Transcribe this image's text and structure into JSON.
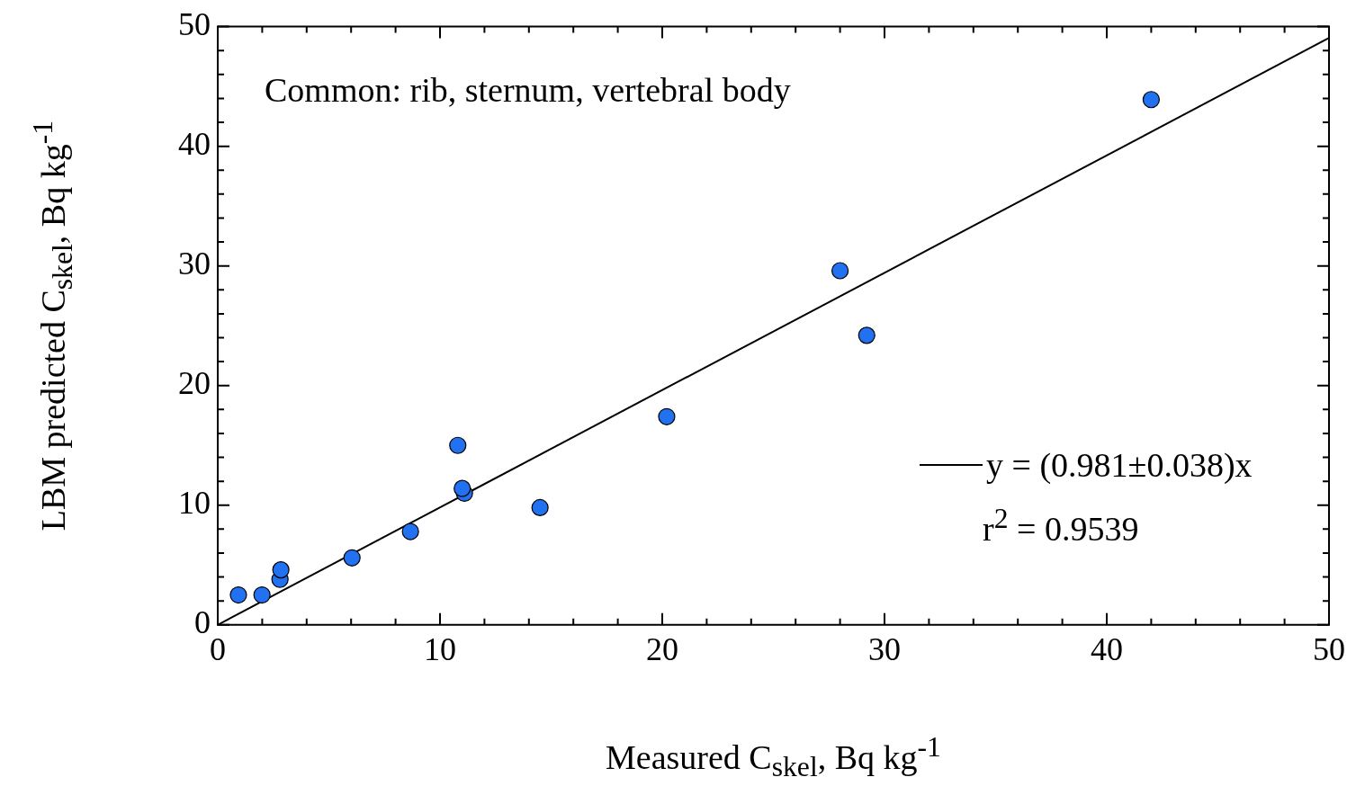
{
  "chart_data": {
    "type": "scatter",
    "xlabel": "Measured C$_{skel}$, Bq kg$^{-1}$",
    "ylabel": "LBM predicted C$_{skel}$, Bq kg$^{-1}$",
    "xlim": [
      0,
      50
    ],
    "ylim": [
      0,
      50
    ],
    "xticks": [
      0,
      {
        "value": 2,
        "label": null
      },
      {
        "value": 4,
        "label": null
      },
      {
        "value": 6,
        "label": null
      },
      {
        "value": 8,
        "label": null
      },
      10,
      {
        "value": 12,
        "label": null
      },
      {
        "value": 14,
        "label": null
      },
      {
        "value": 16,
        "label": null
      },
      {
        "value": 18,
        "label": null
      },
      20,
      {
        "value": 22,
        "label": null
      },
      {
        "value": 24,
        "label": null
      },
      {
        "value": 26,
        "label": null
      },
      {
        "value": 28,
        "label": null
      },
      30,
      {
        "value": 32,
        "label": null
      },
      {
        "value": 34,
        "label": null
      },
      {
        "value": 36,
        "label": null
      },
      {
        "value": 38,
        "label": null
      },
      40,
      {
        "value": 42,
        "label": null
      },
      {
        "value": 44,
        "label": null
      },
      {
        "value": 46,
        "label": null
      },
      {
        "value": 48,
        "label": null
      },
      50
    ],
    "yticks": [
      0,
      {
        "value": 2,
        "label": null
      },
      {
        "value": 4,
        "label": null
      },
      {
        "value": 6,
        "label": null
      },
      {
        "value": 8,
        "label": null
      },
      10,
      {
        "value": 12,
        "label": null
      },
      {
        "value": 14,
        "label": null
      },
      {
        "value": 16,
        "label": null
      },
      {
        "value": 18,
        "label": null
      },
      20,
      {
        "value": 22,
        "label": null
      },
      {
        "value": 24,
        "label": null
      },
      {
        "value": 26,
        "label": null
      },
      {
        "value": 28,
        "label": null
      },
      30,
      {
        "value": 32,
        "label": null
      },
      {
        "value": 34,
        "label": null
      },
      {
        "value": 36,
        "label": null
      },
      {
        "value": 38,
        "label": null
      },
      40,
      {
        "value": 42,
        "label": null
      },
      {
        "value": 44,
        "label": null
      },
      {
        "value": 46,
        "label": null
      },
      {
        "value": 48,
        "label": null
      },
      50
    ],
    "grid": false,
    "legend": "bottom right",
    "annotations": [
      "Common: rib, sternum, vertebral body",
      "r$^{2}$ = 0.9539"
    ],
    "series": [
      {
        "marker": "circle",
        "color": "#2171f0",
        "x": [
          0.93,
          1.99,
          2.8,
          2.84,
          6.04,
          8.67,
          10.8,
          11.1,
          11.0,
          14.5,
          20.2,
          28.0,
          29.2,
          42.0
        ],
        "values": [
          2.5,
          2.5,
          3.8,
          4.6,
          5.6,
          7.8,
          15.0,
          11.0,
          11.4,
          9.8,
          17.4,
          29.6,
          24.2,
          43.9
        ]
      },
      {
        "type": "line",
        "marker": "none",
        "name": "y = (0.981±0.038)x",
        "color": "#000000",
        "x": [
          0,
          50
        ],
        "values": [
          0,
          49.05
        ]
      }
    ]
  }
}
